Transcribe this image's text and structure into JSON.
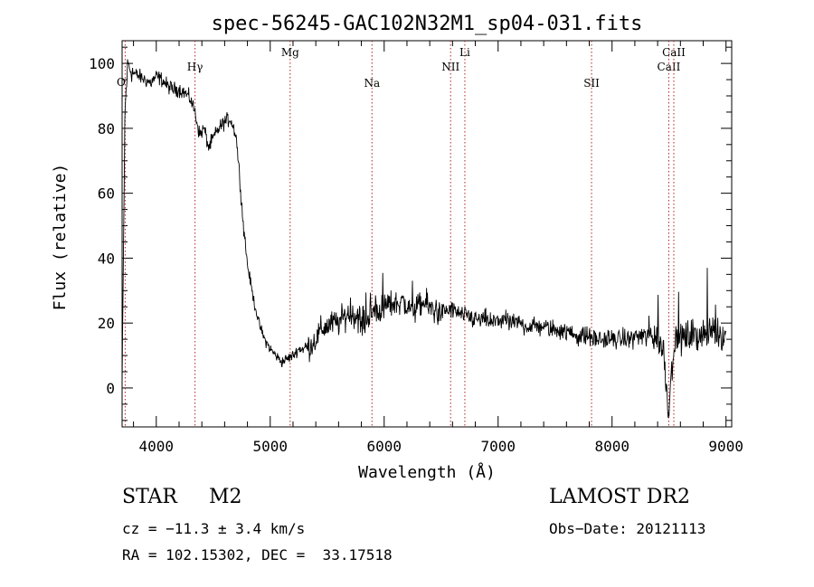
{
  "chart_data": {
    "type": "line",
    "title": "spec-56245-GAC102N32M1_sp04-031.fits",
    "xlabel": "Wavelength (Å)",
    "ylabel": "Flux (relative)",
    "xlim": [
      3700,
      9050
    ],
    "ylim": [
      -12,
      107
    ],
    "xticks": [
      4000,
      5000,
      6000,
      7000,
      8000,
      9000
    ],
    "yticks": [
      0,
      20,
      40,
      60,
      80,
      100
    ],
    "grid": false,
    "line_color": "#000000",
    "marker_color": "#b22222",
    "series": [
      {
        "x": [
          3700,
          3725,
          3750,
          3775,
          3800,
          3850,
          3900,
          3950,
          4000,
          4050,
          4100,
          4150,
          4200,
          4250,
          4300,
          4340,
          4380,
          4420,
          4460,
          4500,
          4550,
          4600,
          4650,
          4700,
          4730,
          4760,
          4800,
          4850,
          4900,
          4950,
          5000,
          5050,
          5100,
          5150,
          5200,
          5250,
          5300,
          5350,
          5400,
          5450,
          5500,
          5550,
          5600,
          5650,
          5700,
          5750,
          5800,
          5850,
          5900,
          5950,
          6000,
          6050,
          6100,
          6150,
          6200,
          6250,
          6300,
          6350,
          6400,
          6450,
          6500,
          6550,
          6600,
          6650,
          6700,
          6750,
          6800,
          6850,
          6900,
          6950,
          7000,
          7050,
          7100,
          7150,
          7200,
          7250,
          7300,
          7350,
          7400,
          7450,
          7500,
          7550,
          7600,
          7650,
          7700,
          7750,
          7800,
          7850,
          7900,
          7950,
          8000,
          8050,
          8100,
          8150,
          8200,
          8250,
          8300,
          8350,
          8400,
          8450,
          8480,
          8500,
          8520,
          8540,
          8560,
          8600,
          8650,
          8700,
          8750,
          8800,
          8850,
          8900,
          8950,
          9000
        ],
        "y": [
          0,
          85,
          100,
          98,
          97,
          96,
          95,
          94,
          96,
          95,
          93,
          92,
          92,
          91,
          89,
          85,
          78,
          80,
          74,
          77,
          80,
          82,
          83,
          78,
          66,
          52,
          38,
          28,
          20,
          15,
          12,
          10,
          8,
          9,
          10,
          12,
          12,
          13,
          15,
          18,
          19,
          20,
          20,
          22,
          23,
          22,
          20,
          21,
          23,
          24,
          25,
          26,
          26,
          27,
          25,
          24,
          25,
          26,
          25,
          24,
          23,
          24,
          24,
          23,
          22,
          22,
          21,
          21,
          21,
          20,
          21,
          21,
          20,
          20,
          20,
          19,
          19,
          19,
          19,
          18,
          18,
          18,
          17,
          17,
          16,
          16,
          16,
          15,
          15,
          15,
          15,
          15,
          15,
          15,
          16,
          16,
          16,
          16,
          15,
          12,
          0,
          -8,
          5,
          12,
          14,
          15,
          16,
          16,
          16,
          17,
          17,
          18,
          17,
          15
        ]
      }
    ],
    "lines": [
      {
        "label": "O",
        "x": 3727,
        "row": 1
      },
      {
        "label": "Hγ",
        "x": 4340,
        "row": 0
      },
      {
        "label": "Mg",
        "x": 5175,
        "row": -1
      },
      {
        "label": "Na",
        "x": 5893,
        "row": 2
      },
      {
        "label": "NII",
        "x": 6583,
        "row": 0
      },
      {
        "label": "Li",
        "x": 6708,
        "row": -1
      },
      {
        "label": "SII",
        "x": 7820,
        "row": 2
      },
      {
        "label": "CaII",
        "x": 8498,
        "row": 0
      },
      {
        "label": "CaII",
        "x": 8542,
        "row": -1
      }
    ]
  },
  "footer": {
    "object": "STAR     M2",
    "survey": "LAMOST DR2",
    "cz": "cz = −11.3 ± 3.4 km/s",
    "obs_date": "Obs−Date: 20121113",
    "radec": "RA = 102.15302, DEC =  33.17518"
  }
}
